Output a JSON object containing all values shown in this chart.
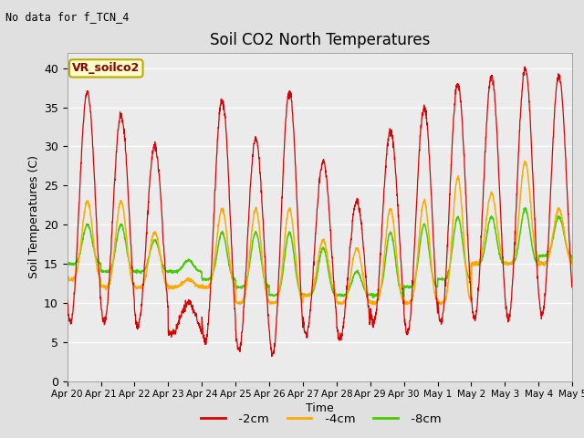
{
  "title": "Soil CO2 North Temperatures",
  "xlabel": "Time",
  "ylabel": "Soil Temperatures (C)",
  "corner_text": "No data for f_TCN_4",
  "legend_label": "VR_soilco2",
  "ylim": [
    0,
    42
  ],
  "yticks": [
    0,
    5,
    10,
    15,
    20,
    25,
    30,
    35,
    40
  ],
  "x_tick_labels": [
    "Apr 20",
    "Apr 21",
    "Apr 22",
    "Apr 23",
    "Apr 24",
    "Apr 25",
    "Apr 26",
    "Apr 27",
    "Apr 28",
    "Apr 29",
    "Apr 30",
    "May 1",
    "May 2",
    "May 3",
    "May 4",
    "May 5"
  ],
  "colors": {
    "2cm": "#dd0000",
    "4cm": "#ffaa00",
    "8cm": "#44cc00"
  },
  "fig_bg": "#e0e0e0",
  "plot_bg": "#ebebeb"
}
